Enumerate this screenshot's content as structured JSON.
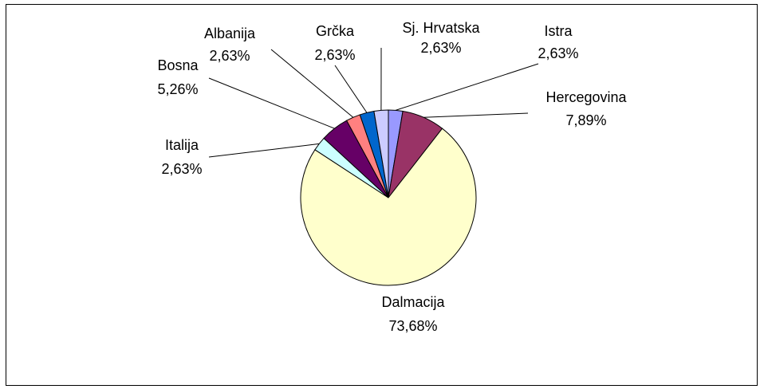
{
  "chart_data": {
    "type": "pie",
    "categories": [
      "Istra",
      "Hercegovina",
      "Dalmacija",
      "Italija",
      "Bosna",
      "Albanija",
      "Grčka",
      "Sj. Hrvatska"
    ],
    "values": [
      2.63,
      7.89,
      73.68,
      2.63,
      5.26,
      2.63,
      2.63,
      2.63
    ],
    "value_labels": [
      "2,63%",
      "7,89%",
      "73,68%",
      "2,63%",
      "5,26%",
      "2,63%",
      "2,63%",
      "2,63%"
    ],
    "colors": [
      "#9999ff",
      "#993366",
      "#ffffcc",
      "#ccffff",
      "#660066",
      "#ff8080",
      "#0066cc",
      "#ccccff"
    ]
  }
}
